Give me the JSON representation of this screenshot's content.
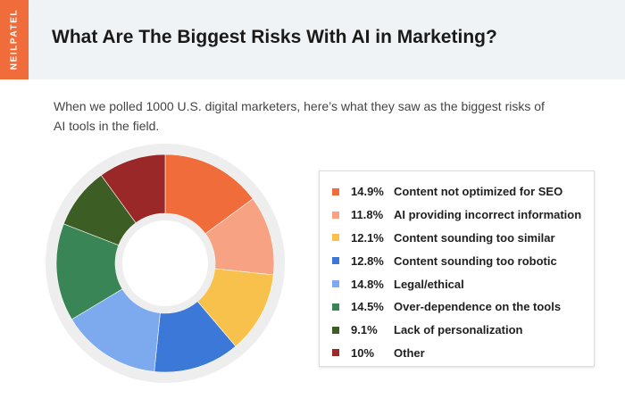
{
  "brand": {
    "text": "NEILPATEL",
    "color": "#f16c3b"
  },
  "header": {
    "title": "What Are The Biggest Risks With AI in Marketing?"
  },
  "subtitle": "When we polled 1000 U.S. digital marketers, here’s what they saw as the biggest risks of AI tools in the field.",
  "chart_data": {
    "type": "pie",
    "style": "donut",
    "title": "",
    "slices": [
      {
        "label": "Content not optimized for SEO",
        "value": 14.9,
        "display": "14.9%",
        "color": "#f16c3b"
      },
      {
        "label": "AI providing incorrect information",
        "value": 11.8,
        "display": "11.8%",
        "color": "#f8a284"
      },
      {
        "label": "Content sounding too similar",
        "value": 12.1,
        "display": "12.1%",
        "color": "#f8c14c"
      },
      {
        "label": "Content sounding too robotic",
        "value": 12.8,
        "display": "12.8%",
        "color": "#3c78d8"
      },
      {
        "label": "Legal/ethical",
        "value": 14.8,
        "display": "14.8%",
        "color": "#7da9ef"
      },
      {
        "label": "Over-dependence on the tools",
        "value": 14.5,
        "display": "14.5%",
        "color": "#3a8555"
      },
      {
        "label": "Lack of personalization",
        "value": 9.1,
        "display": "9.1%",
        "color": "#3c5e24"
      },
      {
        "label": "Other",
        "value": 10,
        "display": "10%",
        "color": "#9b2828"
      }
    ],
    "legend_position": "right"
  }
}
